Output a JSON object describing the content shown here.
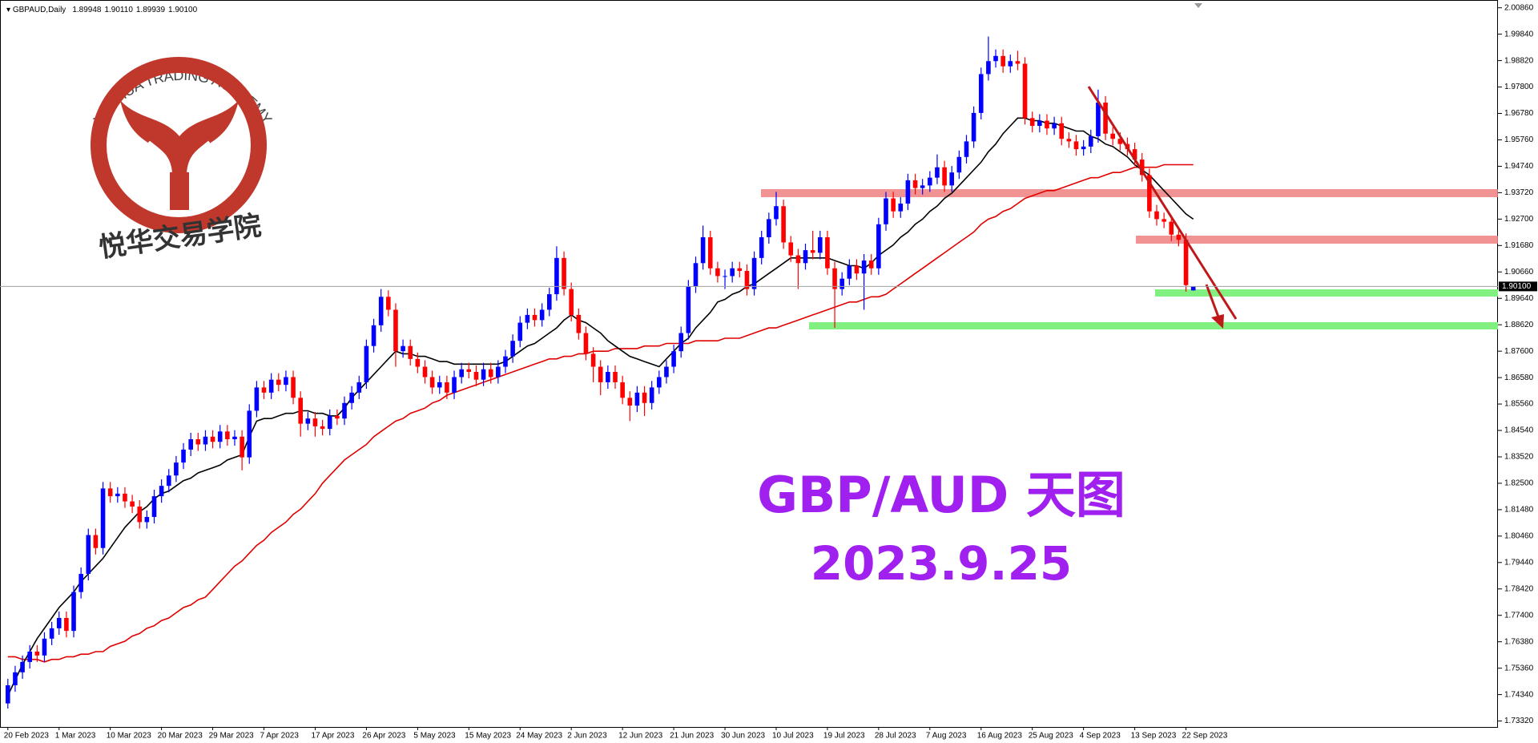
{
  "chart_data": {
    "type": "candlestick",
    "header": "GBPAUD,Daily",
    "last_quote": [
      "1.89948",
      "1.90110",
      "1.89939",
      "1.90100"
    ],
    "title": "GBP/AUD 天图",
    "date_text": "2023.9.25",
    "logo_en": "YUEHUA TRADING ACADEMY",
    "logo_cn": "悦华交易学院",
    "up_color": "#0000ff",
    "down_color": "#ff0000",
    "ylim": [
      1.7309,
      2.0116
    ],
    "yticks": [
      {
        "value": 1.7332,
        "label": "1.73320"
      },
      {
        "value": 1.7434,
        "label": "1.74340"
      },
      {
        "value": 1.7536,
        "label": "1.75360"
      },
      {
        "value": 1.7638,
        "label": "1.76380"
      },
      {
        "value": 1.774,
        "label": "1.77400"
      },
      {
        "value": 1.7842,
        "label": "1.78420"
      },
      {
        "value": 1.7944,
        "label": "1.79440"
      },
      {
        "value": 1.8046,
        "label": "1.80460"
      },
      {
        "value": 1.8148,
        "label": "1.81480"
      },
      {
        "value": 1.825,
        "label": "1.82500"
      },
      {
        "value": 1.8352,
        "label": "1.83520"
      },
      {
        "value": 1.8454,
        "label": "1.84540"
      },
      {
        "value": 1.8556,
        "label": "1.85560"
      },
      {
        "value": 1.8658,
        "label": "1.86580"
      },
      {
        "value": 1.876,
        "label": "1.87600"
      },
      {
        "value": 1.8862,
        "label": "1.88620"
      },
      {
        "value": 1.8964,
        "label": "1.89640"
      },
      {
        "value": 1.9066,
        "label": "1.90660"
      },
      {
        "value": 1.9168,
        "label": "1.91680"
      },
      {
        "value": 1.927,
        "label": "1.92700"
      },
      {
        "value": 1.9372,
        "label": "1.93720"
      },
      {
        "value": 1.9474,
        "label": "1.94740"
      },
      {
        "value": 1.9576,
        "label": "1.95760"
      },
      {
        "value": 1.9678,
        "label": "1.96780"
      },
      {
        "value": 1.978,
        "label": "1.97800"
      },
      {
        "value": 1.9882,
        "label": "1.98820"
      },
      {
        "value": 1.9984,
        "label": "1.99840"
      },
      {
        "value": 2.0086,
        "label": "2.00860"
      }
    ],
    "categories": [
      "20 Feb 2023",
      null,
      null,
      null,
      null,
      null,
      null,
      "1 Mar 2023",
      null,
      null,
      null,
      null,
      null,
      null,
      "10 Mar 2023",
      null,
      null,
      null,
      null,
      null,
      null,
      "20 Mar 2023",
      null,
      null,
      null,
      null,
      null,
      null,
      "29 Mar 2023",
      null,
      null,
      null,
      null,
      null,
      null,
      "7 Apr 2023",
      null,
      null,
      null,
      null,
      null,
      null,
      "17 Apr 2023",
      null,
      null,
      null,
      null,
      null,
      null,
      "26 Apr 2023",
      null,
      null,
      null,
      null,
      null,
      null,
      "5 May 2023",
      null,
      null,
      null,
      null,
      null,
      null,
      "15 May 2023",
      null,
      null,
      null,
      null,
      null,
      null,
      "24 May 2023",
      null,
      null,
      null,
      null,
      null,
      null,
      "2 Jun 2023",
      null,
      null,
      null,
      null,
      null,
      null,
      "12 Jun 2023",
      null,
      null,
      null,
      null,
      null,
      null,
      "21 Jun 2023",
      null,
      null,
      null,
      null,
      null,
      null,
      "30 Jun 2023",
      null,
      null,
      null,
      null,
      null,
      null,
      "10 Jul 2023",
      null,
      null,
      null,
      null,
      null,
      null,
      "19 Jul 2023",
      null,
      null,
      null,
      null,
      null,
      null,
      "28 Jul 2023",
      null,
      null,
      null,
      null,
      null,
      null,
      "7 Aug 2023",
      null,
      null,
      null,
      null,
      null,
      null,
      "16 Aug 2023",
      null,
      null,
      null,
      null,
      null,
      null,
      "25 Aug 2023",
      null,
      null,
      null,
      null,
      null,
      null,
      "4 Sep 2023",
      null,
      null,
      null,
      null,
      null,
      null,
      "13 Sep 2023",
      null,
      null,
      null,
      null,
      null,
      null,
      "22 Sep 2023",
      null
    ],
    "open": [
      1.74,
      1.747,
      1.752,
      1.756,
      1.76,
      1.7585,
      1.765,
      1.769,
      1.773,
      1.768,
      1.783,
      1.79,
      1.805,
      1.8,
      1.823,
      1.82,
      1.821,
      1.818,
      1.816,
      1.81,
      1.812,
      1.82,
      1.824,
      1.828,
      1.833,
      1.838,
      1.842,
      1.84,
      1.843,
      1.841,
      1.845,
      1.842,
      1.843,
      1.835,
      1.853,
      1.862,
      1.86,
      1.865,
      1.863,
      1.866,
      1.858,
      1.848,
      1.85,
      1.847,
      1.846,
      1.851,
      1.85,
      1.856,
      1.86,
      1.864,
      1.878,
      1.886,
      1.897,
      1.892,
      1.876,
      1.878,
      1.873,
      1.87,
      1.866,
      1.862,
      1.864,
      1.86,
      1.866,
      1.869,
      1.868,
      1.865,
      1.869,
      1.866,
      1.87,
      1.874,
      1.88,
      1.887,
      1.89,
      1.888,
      1.892,
      1.898,
      1.912,
      1.9,
      1.89,
      1.883,
      1.875,
      1.87,
      1.864,
      1.868,
      1.864,
      1.858,
      1.855,
      1.86,
      1.856,
      1.862,
      1.866,
      1.87,
      1.876,
      1.883,
      1.901,
      1.91,
      1.92,
      1.908,
      1.905,
      1.905,
      1.908,
      1.907,
      1.9,
      1.912,
      1.92,
      1.927,
      1.932,
      1.918,
      1.913,
      1.91,
      1.915,
      1.914,
      1.92,
      1.908,
      1.9,
      1.904,
      1.909,
      1.906,
      1.911,
      1.908,
      1.925,
      1.935,
      1.93,
      1.933,
      1.942,
      1.939,
      1.94,
      1.943,
      1.947,
      1.94,
      1.945,
      1.951,
      1.957,
      1.968,
      1.983,
      1.988,
      1.99,
      1.986,
      1.988,
      1.987,
      1.966,
      1.963,
      1.965,
      1.962,
      1.964,
      1.958,
      1.957,
      1.954,
      1.955,
      1.959,
      1.972,
      1.96,
      1.958,
      1.956,
      1.954,
      1.95,
      1.944,
      1.93,
      1.927,
      1.926,
      1.921,
      1.919,
      1.89948
    ],
    "high": [
      1.7495,
      1.7545,
      1.7585,
      1.7625,
      1.7625,
      1.7675,
      1.7715,
      1.7755,
      1.7755,
      1.7855,
      1.7925,
      1.8075,
      1.8075,
      1.8255,
      1.8255,
      1.8235,
      1.8235,
      1.8205,
      1.8185,
      1.8145,
      1.8225,
      1.8265,
      1.8305,
      1.8355,
      1.8405,
      1.8445,
      1.8445,
      1.8455,
      1.8455,
      1.8475,
      1.8475,
      1.8455,
      1.8455,
      1.8555,
      1.8645,
      1.8645,
      1.8675,
      1.8675,
      1.8685,
      1.8685,
      1.8605,
      1.8525,
      1.8525,
      1.8495,
      1.8535,
      1.8535,
      1.8585,
      1.8625,
      1.8665,
      1.8805,
      1.8885,
      1.9,
      1.8995,
      1.8945,
      1.8805,
      1.8805,
      1.8755,
      1.8725,
      1.8685,
      1.8665,
      1.8665,
      1.8685,
      1.8715,
      1.8715,
      1.8705,
      1.8715,
      1.8715,
      1.8725,
      1.8765,
      1.8825,
      1.8895,
      1.8925,
      1.8925,
      1.8945,
      1.9005,
      1.9165,
      1.9145,
      1.9025,
      1.8925,
      1.8855,
      1.8775,
      1.8725,
      1.8705,
      1.8705,
      1.8665,
      1.8605,
      1.8625,
      1.8625,
      1.8645,
      1.8685,
      1.8725,
      1.8785,
      1.8855,
      1.9035,
      1.9125,
      1.9245,
      1.9225,
      1.9105,
      1.9075,
      1.9105,
      1.9105,
      1.9095,
      1.9145,
      1.9225,
      1.9295,
      1.9375,
      1.9345,
      1.9205,
      1.9155,
      1.9175,
      1.9225,
      1.9225,
      1.9225,
      1.9105,
      1.9065,
      1.9115,
      1.9115,
      1.9135,
      1.9135,
      1.9275,
      1.9375,
      1.9375,
      1.9355,
      1.9445,
      1.9445,
      1.9425,
      1.9455,
      1.952,
      1.9495,
      1.9475,
      1.9535,
      1.9595,
      1.9705,
      1.9855,
      1.9975,
      1.9925,
      1.9925,
      1.9905,
      1.992,
      1.9895,
      1.9685,
      1.9675,
      1.9675,
      1.9665,
      1.9665,
      1.9605,
      1.9595,
      1.9575,
      1.9615,
      1.977,
      1.9745,
      1.9625,
      1.9605,
      1.9585,
      1.9565,
      1.9525,
      1.9465,
      1.9325,
      1.9295,
      1.9285,
      1.9235,
      1.9215,
      1.9011
    ],
    "low": [
      1.738,
      1.7445,
      1.7495,
      1.7535,
      1.756,
      1.756,
      1.7625,
      1.7665,
      1.7655,
      1.7655,
      1.7805,
      1.7875,
      1.7975,
      1.7975,
      1.8175,
      1.8175,
      1.8155,
      1.8135,
      1.8075,
      1.8075,
      1.8095,
      1.8175,
      1.8215,
      1.8255,
      1.8305,
      1.8355,
      1.8375,
      1.8375,
      1.8385,
      1.8385,
      1.8395,
      1.8395,
      1.83,
      1.8325,
      1.8505,
      1.8575,
      1.8575,
      1.8605,
      1.8605,
      1.8555,
      1.843,
      1.8455,
      1.843,
      1.8435,
      1.8435,
      1.8475,
      1.8475,
      1.8535,
      1.8575,
      1.8615,
      1.8755,
      1.8835,
      1.8895,
      1.87,
      1.8735,
      1.8705,
      1.8675,
      1.8635,
      1.8595,
      1.8595,
      1.8575,
      1.8575,
      1.8635,
      1.8655,
      1.8625,
      1.8625,
      1.8635,
      1.8635,
      1.8675,
      1.8715,
      1.8775,
      1.8845,
      1.8855,
      1.8855,
      1.8895,
      1.8955,
      1.8975,
      1.8875,
      1.8805,
      1.8725,
      1.864,
      1.859,
      1.8615,
      1.8615,
      1.8555,
      1.849,
      1.8525,
      1.851,
      1.8535,
      1.8595,
      1.8635,
      1.8675,
      1.8735,
      1.8805,
      1.8985,
      1.9075,
      1.9055,
      1.9025,
      1.9,
      1.9025,
      1.9045,
      1.8975,
      1.8975,
      1.9095,
      1.9175,
      1.9245,
      1.9155,
      1.9105,
      1.9,
      1.9075,
      1.9115,
      1.9115,
      1.9055,
      1.885,
      1.8975,
      1.9015,
      1.9035,
      1.892,
      1.9055,
      1.9055,
      1.9225,
      1.9275,
      1.9275,
      1.9305,
      1.9365,
      1.9365,
      1.9375,
      1.9405,
      1.9375,
      1.9375,
      1.9425,
      1.9485,
      1.9545,
      1.9655,
      1.9805,
      1.9855,
      1.9835,
      1.9835,
      1.9845,
      1.9635,
      1.9605,
      1.9605,
      1.9595,
      1.9595,
      1.9555,
      1.9545,
      1.9515,
      1.9515,
      1.9525,
      1.9565,
      1.9575,
      1.9555,
      1.9535,
      1.9515,
      1.9475,
      1.9415,
      1.9275,
      1.9245,
      1.9235,
      1.9185,
      1.9165,
      1.899,
      1.89939
    ],
    "close": [
      1.747,
      1.752,
      1.756,
      1.76,
      1.7585,
      1.765,
      1.769,
      1.773,
      1.768,
      1.783,
      1.79,
      1.805,
      1.8,
      1.823,
      1.82,
      1.821,
      1.818,
      1.816,
      1.81,
      1.812,
      1.82,
      1.824,
      1.828,
      1.833,
      1.838,
      1.842,
      1.84,
      1.843,
      1.841,
      1.845,
      1.842,
      1.843,
      1.835,
      1.853,
      1.862,
      1.86,
      1.865,
      1.863,
      1.866,
      1.858,
      1.848,
      1.85,
      1.847,
      1.846,
      1.851,
      1.85,
      1.856,
      1.86,
      1.864,
      1.878,
      1.886,
      1.897,
      1.892,
      1.876,
      1.878,
      1.873,
      1.87,
      1.866,
      1.862,
      1.864,
      1.86,
      1.866,
      1.869,
      1.868,
      1.865,
      1.869,
      1.866,
      1.87,
      1.874,
      1.88,
      1.887,
      1.89,
      1.888,
      1.892,
      1.898,
      1.912,
      1.9,
      1.89,
      1.883,
      1.875,
      1.87,
      1.864,
      1.868,
      1.864,
      1.858,
      1.855,
      1.86,
      1.856,
      1.862,
      1.866,
      1.87,
      1.876,
      1.883,
      1.901,
      1.91,
      1.92,
      1.908,
      1.905,
      1.905,
      1.908,
      1.907,
      1.9,
      1.912,
      1.92,
      1.927,
      1.932,
      1.918,
      1.913,
      1.91,
      1.915,
      1.914,
      1.92,
      1.908,
      1.9,
      1.904,
      1.909,
      1.906,
      1.911,
      1.908,
      1.925,
      1.935,
      1.93,
      1.933,
      1.942,
      1.939,
      1.94,
      1.943,
      1.947,
      1.94,
      1.945,
      1.951,
      1.957,
      1.968,
      1.983,
      1.988,
      1.99,
      1.986,
      1.988,
      1.987,
      1.966,
      1.963,
      1.965,
      1.962,
      1.964,
      1.958,
      1.957,
      1.954,
      1.955,
      1.959,
      1.972,
      1.96,
      1.958,
      1.956,
      1.954,
      1.95,
      1.944,
      1.93,
      1.927,
      1.926,
      1.921,
      1.919,
      1.9015,
      1.901
    ],
    "lines": [
      {
        "color": "#e00000",
        "values": [
          1.758,
          1.758,
          1.757,
          1.757,
          1.757,
          1.756,
          1.757,
          1.757,
          1.758,
          1.758,
          1.759,
          1.759,
          1.76,
          1.76,
          1.762,
          1.763,
          1.764,
          1.766,
          1.767,
          1.769,
          1.77,
          1.772,
          1.773,
          1.775,
          1.777,
          1.778,
          1.78,
          1.781,
          1.784,
          1.787,
          1.79,
          1.793,
          1.795,
          1.798,
          1.801,
          1.803,
          1.806,
          1.808,
          1.81,
          1.813,
          1.815,
          1.818,
          1.821,
          1.825,
          1.828,
          1.831,
          1.834,
          1.836,
          1.838,
          1.84,
          1.843,
          1.845,
          1.847,
          1.849,
          1.85,
          1.852,
          1.853,
          1.854,
          1.856,
          1.857,
          1.859,
          1.86,
          1.861,
          1.862,
          1.863,
          1.864,
          1.865,
          1.866,
          1.867,
          1.868,
          1.869,
          1.87,
          1.871,
          1.872,
          1.873,
          1.873,
          1.874,
          1.874,
          1.875,
          1.875,
          1.876,
          1.876,
          1.876,
          1.877,
          1.877,
          1.877,
          1.877,
          1.878,
          1.878,
          1.878,
          1.879,
          1.879,
          1.879,
          1.879,
          1.88,
          1.88,
          1.88,
          1.88,
          1.881,
          1.881,
          1.881,
          1.882,
          1.883,
          1.884,
          1.885,
          1.885,
          1.886,
          1.887,
          1.888,
          1.889,
          1.89,
          1.891,
          1.892,
          1.893,
          1.894,
          1.895,
          1.895,
          1.896,
          1.897,
          1.897,
          1.898,
          1.9,
          1.902,
          1.904,
          1.906,
          1.908,
          1.91,
          1.912,
          1.914,
          1.916,
          1.918,
          1.92,
          1.922,
          1.925,
          1.927,
          1.928,
          1.93,
          1.931,
          1.933,
          1.935,
          1.936,
          1.937,
          1.938,
          1.938,
          1.939,
          1.94,
          1.941,
          1.942,
          1.943,
          1.943,
          1.944,
          1.945,
          1.945,
          1.946,
          1.947,
          1.947,
          1.947,
          1.947,
          1.948,
          1.948,
          1.948,
          1.948,
          1.948
        ]
      },
      {
        "color": "#000000",
        "values": [
          1.743,
          1.749,
          1.755,
          1.76,
          1.765,
          1.769,
          1.773,
          1.777,
          1.78,
          1.783,
          1.787,
          1.79,
          1.793,
          1.796,
          1.8,
          1.804,
          1.808,
          1.811,
          1.814,
          1.816,
          1.819,
          1.821,
          1.822,
          1.824,
          1.826,
          1.827,
          1.829,
          1.83,
          1.831,
          1.832,
          1.834,
          1.835,
          1.836,
          1.843,
          1.849,
          1.85,
          1.85,
          1.851,
          1.852,
          1.852,
          1.853,
          1.853,
          1.852,
          1.852,
          1.851,
          1.851,
          1.854,
          1.858,
          1.861,
          1.864,
          1.867,
          1.87,
          1.873,
          1.876,
          1.875,
          1.875,
          1.874,
          1.874,
          1.873,
          1.872,
          1.872,
          1.871,
          1.871,
          1.871,
          1.871,
          1.871,
          1.871,
          1.871,
          1.872,
          1.874,
          1.876,
          1.878,
          1.879,
          1.881,
          1.883,
          1.885,
          1.888,
          1.89,
          1.888,
          1.887,
          1.885,
          1.883,
          1.88,
          1.878,
          1.876,
          1.874,
          1.873,
          1.872,
          1.871,
          1.87,
          1.873,
          1.876,
          1.879,
          1.881,
          1.885,
          1.888,
          1.891,
          1.895,
          1.896,
          1.898,
          1.899,
          1.901,
          1.902,
          1.904,
          1.906,
          1.908,
          1.91,
          1.912,
          1.912,
          1.912,
          1.912,
          1.912,
          1.912,
          1.911,
          1.91,
          1.909,
          1.909,
          1.908,
          1.91,
          1.913,
          1.915,
          1.917,
          1.92,
          1.922,
          1.925,
          1.927,
          1.93,
          1.932,
          1.935,
          1.937,
          1.94,
          1.943,
          1.946,
          1.949,
          1.953,
          1.956,
          1.96,
          1.963,
          1.966,
          1.966,
          1.965,
          1.965,
          1.964,
          1.964,
          1.963,
          1.962,
          1.961,
          1.961,
          1.959,
          1.958,
          1.956,
          1.955,
          1.953,
          1.951,
          1.948,
          1.946,
          1.944,
          1.941,
          1.938,
          1.935,
          1.932,
          1.929,
          1.927
        ]
      }
    ]
  }
}
